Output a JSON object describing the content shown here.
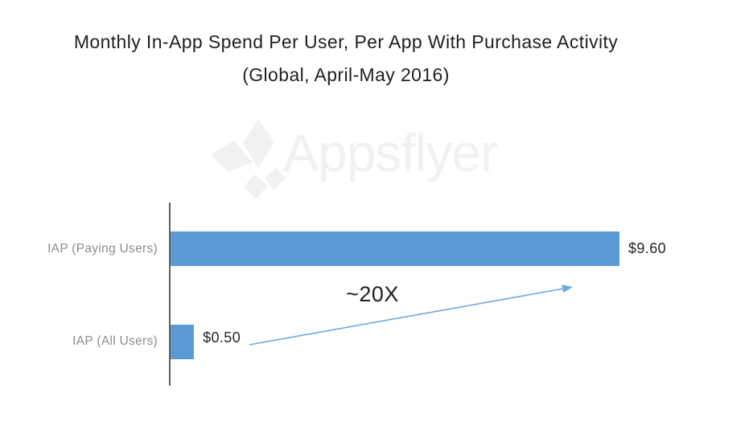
{
  "page": {
    "background": "#ffffff"
  },
  "watermark": {
    "text": "Appsflyer",
    "color": "#f1f1f1"
  },
  "chart_data": {
    "type": "bar",
    "orientation": "horizontal",
    "title": "Monthly In-App Spend Per User, Per App With Purchase Activity",
    "subtitle": "(Global, April-May 2016)",
    "categories": [
      "IAP (Paying Users)",
      "IAP (All Users)"
    ],
    "values": [
      9.6,
      0.5
    ],
    "data_labels": [
      "$9.60",
      "$0.50"
    ],
    "annotation": "~20X",
    "xlim": [
      0,
      9.6
    ],
    "grid": false,
    "legend": false,
    "bar_color": "#5b9bd5",
    "arrow_color": "#6fa8dc",
    "axis_color": "#5f5f5f",
    "category_label_color": "#8c8c8c",
    "value_label_color": "#262626",
    "title_color": "#1f1f1f"
  }
}
